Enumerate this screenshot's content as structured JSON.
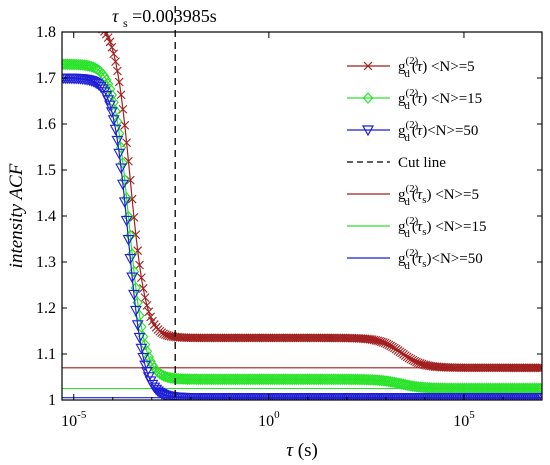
{
  "chart_data": {
    "type": "line",
    "xscale": "log",
    "xlim": [
      5e-06,
      10000000.0
    ],
    "ylim": [
      1.0,
      1.8
    ],
    "xticks": [
      1e-05,
      1,
      100000.0
    ],
    "xtick_labels": [
      {
        "base": "10",
        "exp": "-5"
      },
      {
        "base": "10",
        "exp": "0"
      },
      {
        "base": "10",
        "exp": "5"
      }
    ],
    "yticks": [
      1.0,
      1.1,
      1.2,
      1.3,
      1.4,
      1.5,
      1.6,
      1.7,
      1.8
    ],
    "ytick_labels": [
      "1",
      "1.1",
      "1.2",
      "1.3",
      "1.4",
      "1.5",
      "1.6",
      "1.7",
      "1.8"
    ],
    "xlabel": {
      "main": "τ",
      "suffix": " (s)"
    },
    "ylabel": "intensity ACF",
    "grid": false,
    "legend_position": "top-right",
    "annotation": {
      "sym": "τ",
      "sub": "s",
      "text": "=0.003985s"
    },
    "cut_line_x": 0.003985,
    "series": [
      {
        "name": "g_d^(2)(τ) <N>=5",
        "color": "#a11f1f",
        "marker": "x",
        "baseline": 1.07,
        "amplitude": 0.69,
        "tau_c": 0.00028,
        "slow_amp": 0.065,
        "slow_tau": 2500,
        "x": [
          1e-05,
          3e-05,
          0.0001,
          0.0002,
          0.0003,
          0.0005,
          0.001,
          0.003,
          0.01,
          1,
          100,
          1000,
          10000,
          100000,
          1000000.0,
          10000000.0
        ],
        "y": [
          1.76,
          1.74,
          1.66,
          1.54,
          1.45,
          1.31,
          1.16,
          1.07,
          1.07,
          1.07,
          1.068,
          1.06,
          1.04,
          1.02,
          1.006,
          1.005
        ]
      },
      {
        "name": "g_d^(2)(τ) <N>=15",
        "color": "#29e329",
        "marker": "diamond",
        "baseline": 1.025,
        "amplitude": 0.685,
        "tau_c": 0.00026,
        "slow_amp": 0.02,
        "slow_tau": 2500,
        "x": [
          1e-05,
          3e-05,
          0.0001,
          0.0002,
          0.0003,
          0.0005,
          0.001,
          0.003,
          0.01,
          1,
          100,
          10000,
          100000,
          10000000.0
        ],
        "y": [
          1.71,
          1.69,
          1.61,
          1.48,
          1.39,
          1.25,
          1.1,
          1.028,
          1.025,
          1.025,
          1.024,
          1.015,
          1.007,
          1.005
        ]
      },
      {
        "name": "g_d^(2)(τ)<N>=50",
        "color": "#1f1fd6",
        "marker": "triangle-down",
        "baseline": 1.005,
        "amplitude": 0.695,
        "tau_c": 0.00025,
        "slow_amp": 0.0,
        "slow_tau": 2500,
        "x": [
          1e-05,
          3e-05,
          0.0001,
          0.0002,
          0.0003,
          0.0005,
          0.001,
          0.003,
          0.01,
          1,
          100000,
          10000000.0
        ],
        "y": [
          1.7,
          1.68,
          1.6,
          1.46,
          1.37,
          1.23,
          1.08,
          1.008,
          1.005,
          1.005,
          1.005,
          1.005
        ]
      },
      {
        "name": "Cut line",
        "color": "#000000",
        "style": "dashed"
      },
      {
        "name": "g_d^(2)(τ_s) <N>=5",
        "color": "#a11f1f",
        "style": "solid",
        "y": 1.07
      },
      {
        "name": "g_d^(2)(τ_s) <N>=15",
        "color": "#29e329",
        "style": "solid",
        "y": 1.025
      },
      {
        "name": "g_d^(2)(τ_s)<N>=50",
        "color": "#1f1fd6",
        "style": "solid",
        "y": 1.005
      }
    ]
  }
}
